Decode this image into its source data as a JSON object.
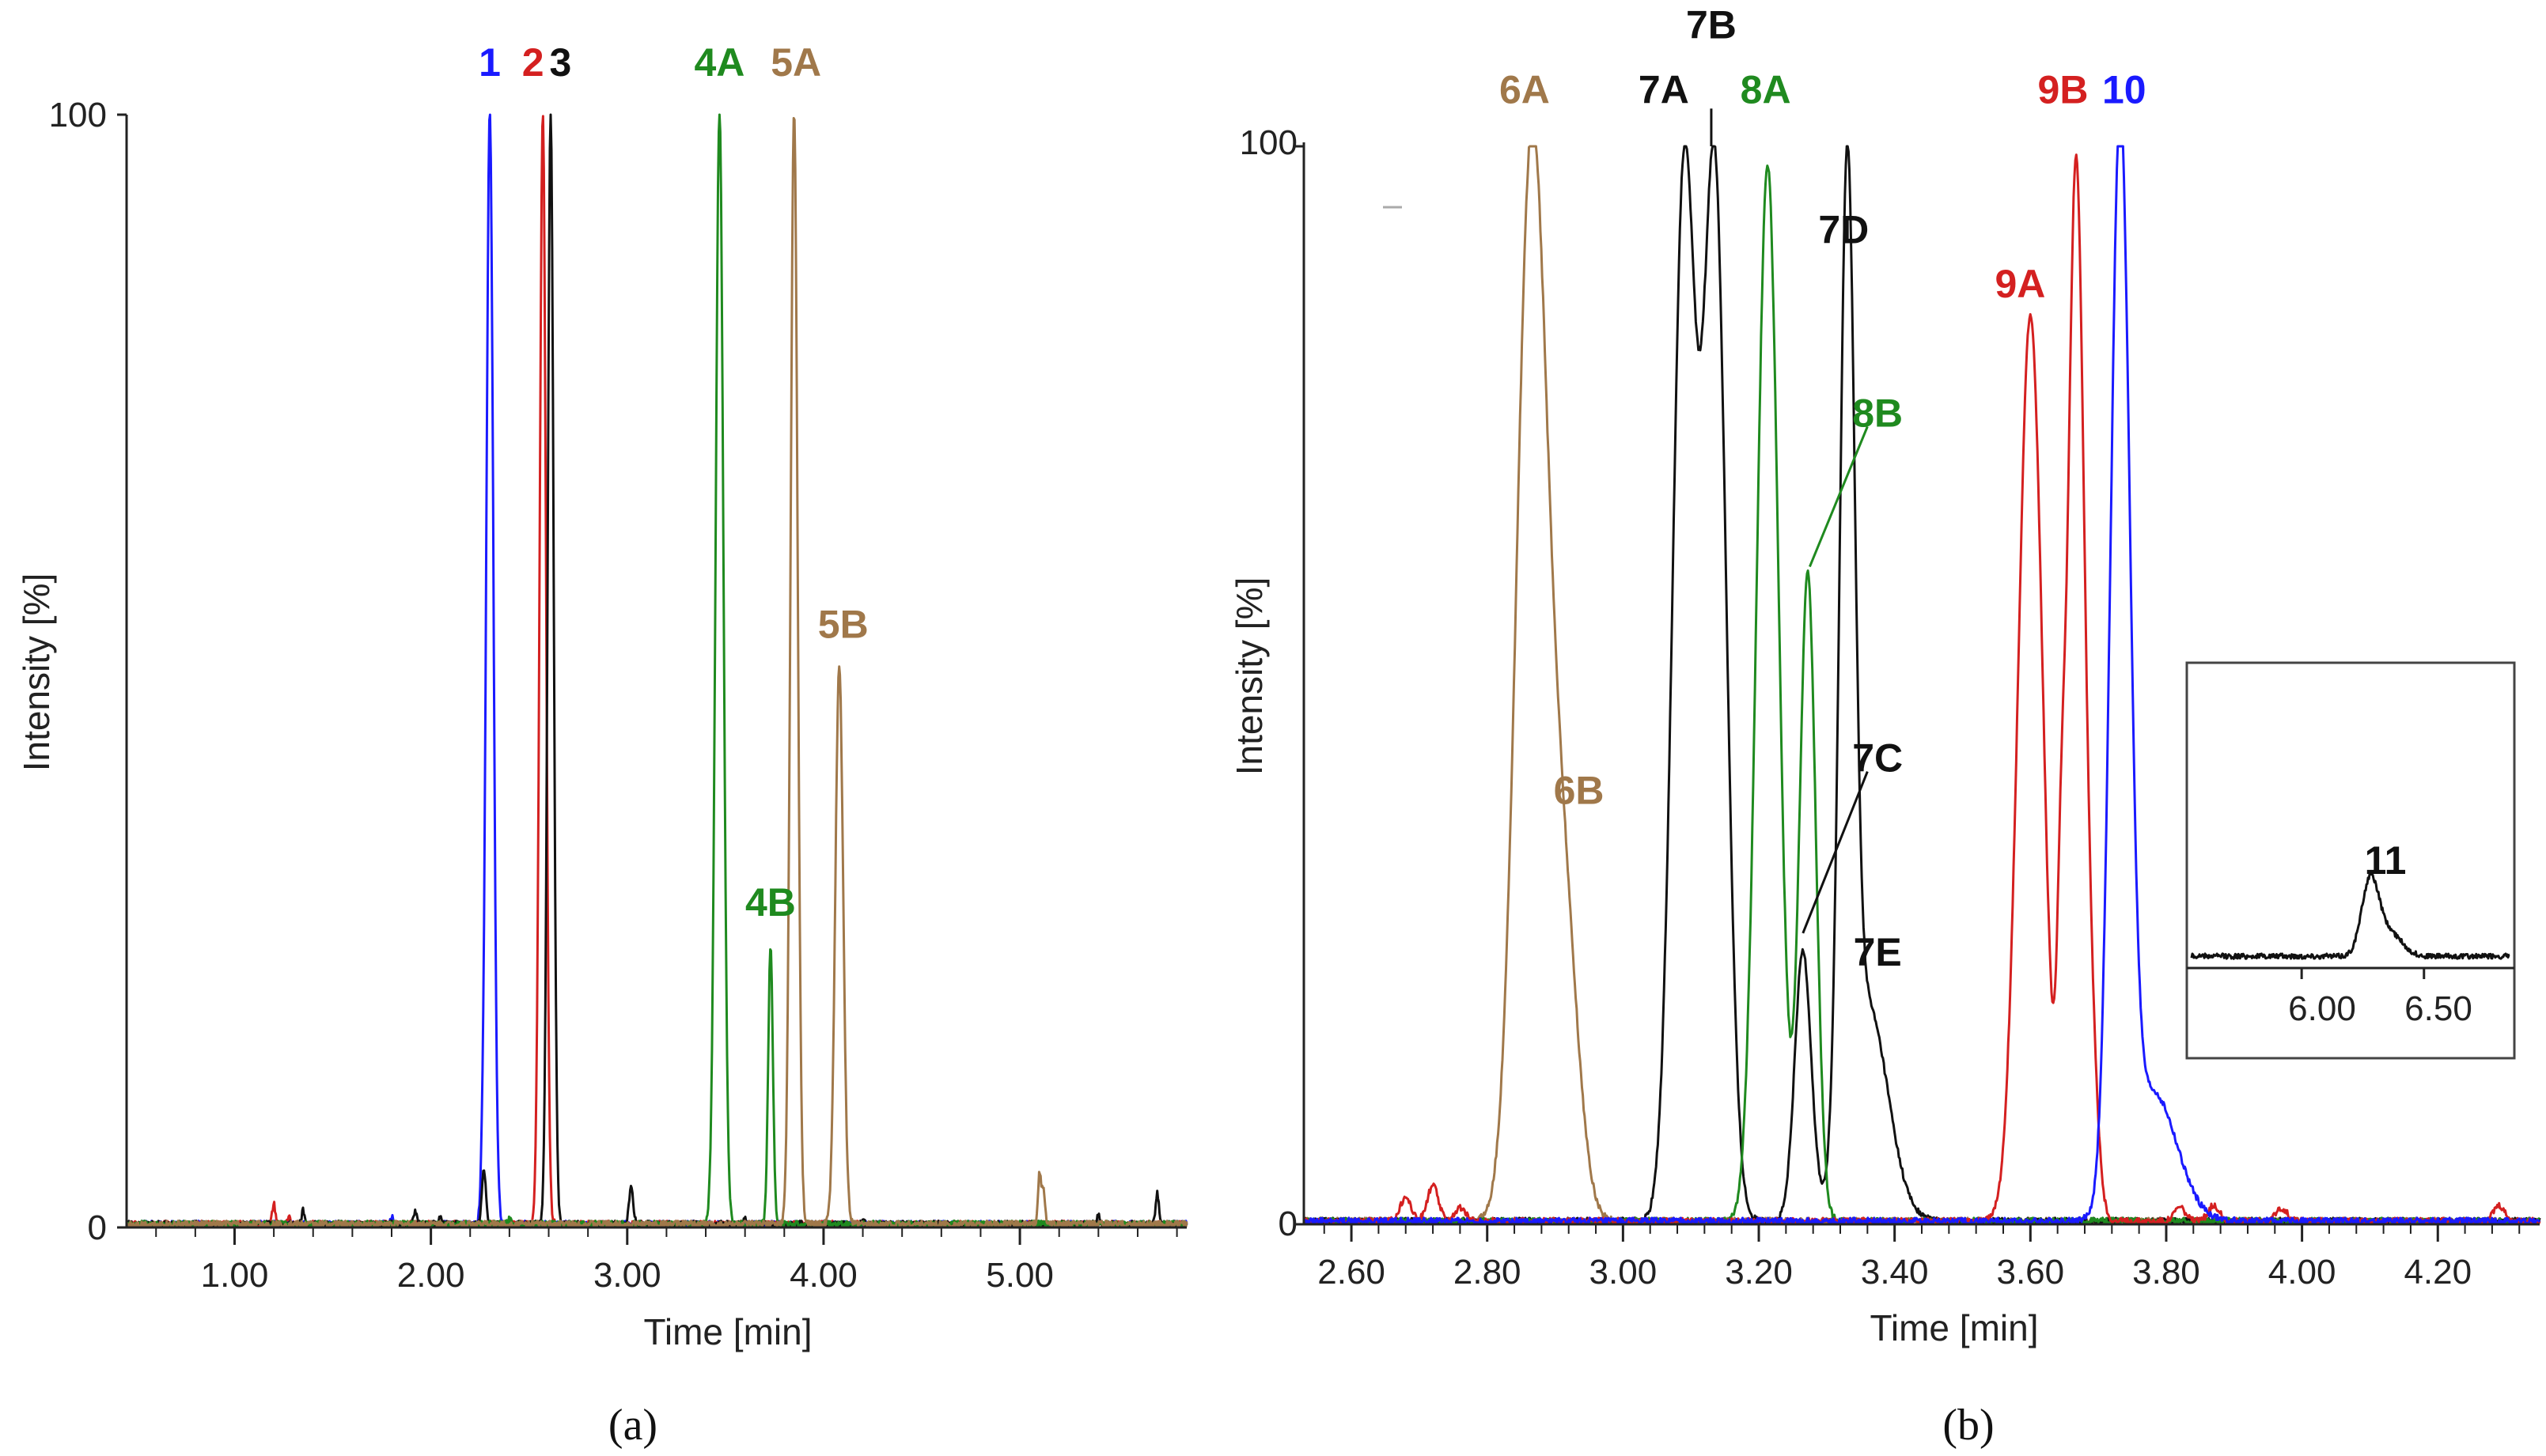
{
  "chart_data": [
    {
      "panel": "a",
      "type": "line",
      "panel_label": "(a)",
      "xlabel": "Time [min]",
      "ylabel": "Intensity [%]",
      "xlim": [
        0.45,
        5.85
      ],
      "ylim": [
        0,
        100
      ],
      "xticks": [
        1.0,
        2.0,
        3.0,
        4.0,
        5.0
      ],
      "xtick_labels": [
        "1.00",
        "2.00",
        "3.00",
        "4.00",
        "5.00"
      ],
      "yticks": [
        0,
        100
      ],
      "ytick_labels": [
        "0",
        "100"
      ],
      "colors": {
        "blue": "#1a1aff",
        "red": "#d42020",
        "black": "#111111",
        "green": "#1f8a1f",
        "brown": "#a0784a"
      },
      "series": [
        {
          "name": "1",
          "color": "blue",
          "peaks": [
            {
              "t": 2.3,
              "h": 100,
              "w": 0.018
            }
          ],
          "noise": [
            [
              1.8,
              0.6
            ],
            [
              2.26,
              2.0
            ]
          ]
        },
        {
          "name": "2",
          "color": "red",
          "peaks": [
            {
              "t": 2.57,
              "h": 100,
              "w": 0.016
            }
          ],
          "noise": [
            [
              1.2,
              1.8
            ],
            [
              1.28,
              0.5
            ]
          ]
        },
        {
          "name": "3",
          "color": "black",
          "peaks": [
            {
              "t": 2.61,
              "h": 100,
              "w": 0.015
            },
            {
              "t": 2.27,
              "h": 5,
              "w": 0.01
            },
            {
              "t": 3.02,
              "h": 3.5,
              "w": 0.01
            }
          ],
          "noise": [
            [
              1.35,
              1.2
            ],
            [
              1.92,
              1.0
            ],
            [
              2.05,
              0.6
            ],
            [
              3.6,
              0.5
            ],
            [
              4.2,
              0.5
            ],
            [
              5.4,
              0.8
            ],
            [
              5.7,
              2.8
            ]
          ]
        },
        {
          "name": "4",
          "color": "green",
          "peaks": [
            {
              "t": 3.47,
              "h": 100,
              "w": 0.02
            },
            {
              "t": 3.73,
              "h": 25,
              "w": 0.012
            }
          ],
          "noise": [
            [
              2.4,
              0.4
            ]
          ]
        },
        {
          "name": "5",
          "color": "brown",
          "peaks": [
            {
              "t": 3.85,
              "h": 100,
              "w": 0.018
            },
            {
              "t": 4.08,
              "h": 50,
              "w": 0.02
            }
          ],
          "noise": [
            [
              5.1,
              4.5
            ],
            [
              5.12,
              3.0
            ]
          ]
        }
      ],
      "annotations": [
        {
          "text": "1",
          "t": 2.3,
          "color": "blue"
        },
        {
          "text": "2",
          "t": 2.52,
          "color": "red"
        },
        {
          "text": "3",
          "t": 2.66,
          "color": "black"
        },
        {
          "text": "4A",
          "t": 3.47,
          "color": "green"
        },
        {
          "text": "5A",
          "t": 3.86,
          "color": "brown"
        },
        {
          "text": "4B",
          "t": 3.73,
          "color": "green",
          "y": 28
        },
        {
          "text": "5B",
          "t": 4.1,
          "color": "brown",
          "y": 53
        }
      ]
    },
    {
      "panel": "b",
      "type": "line",
      "panel_label": "(b)",
      "xlabel": "Time [min]",
      "ylabel": "Intensity [%]",
      "xlim": [
        2.53,
        4.35
      ],
      "ylim": [
        0,
        100
      ],
      "xticks": [
        2.6,
        2.8,
        3.0,
        3.2,
        3.4,
        3.6,
        3.8,
        4.0,
        4.2
      ],
      "xtick_labels": [
        "2.60",
        "2.80",
        "3.00",
        "3.20",
        "3.40",
        "3.60",
        "3.80",
        "4.00",
        "4.20"
      ],
      "yticks": [
        0,
        100
      ],
      "ytick_labels": [
        "0",
        "100"
      ],
      "colors": {
        "blue": "#1a1aff",
        "red": "#d42020",
        "black": "#111111",
        "green": "#1f8a1f",
        "brown": "#a0784a"
      },
      "series": [
        {
          "name": "6",
          "color": "brown",
          "peaks": [
            {
              "t": 2.865,
              "h": 98,
              "w": 0.022
            },
            {
              "t": 2.91,
              "h": 30,
              "w": 0.022
            }
          ]
        },
        {
          "name": "7",
          "color": "black",
          "peaks": [
            {
              "t": 3.09,
              "h": 97,
              "w": 0.017
            },
            {
              "t": 3.135,
              "h": 97,
              "w": 0.017
            },
            {
              "t": 3.265,
              "h": 25,
              "w": 0.012
            },
            {
              "t": 3.33,
              "h": 88,
              "w": 0.011
            },
            {
              "t": 3.36,
              "h": 20,
              "w": 0.03
            }
          ]
        },
        {
          "name": "8",
          "color": "green",
          "peaks": [
            {
              "t": 3.213,
              "h": 98,
              "w": 0.016
            },
            {
              "t": 3.272,
              "h": 60,
              "w": 0.012
            }
          ]
        },
        {
          "name": "9",
          "color": "red",
          "peaks": [
            {
              "t": 3.6,
              "h": 84,
              "w": 0.018
            },
            {
              "t": 3.667,
              "h": 98,
              "w": 0.012
            },
            {
              "t": 3.645,
              "h": 20,
              "w": 0.006
            },
            {
              "t": 3.69,
              "h": 12,
              "w": 0.01
            }
          ],
          "noise": [
            [
              2.68,
              2.2
            ],
            [
              2.72,
              3.3
            ],
            [
              2.76,
              1.2
            ],
            [
              3.82,
              1.3
            ],
            [
              3.87,
              1.5
            ],
            [
              3.97,
              1.2
            ],
            [
              4.29,
              1.4
            ]
          ]
        },
        {
          "name": "10",
          "color": "blue",
          "peaks": [
            {
              "t": 3.732,
              "h": 99,
              "w": 0.014
            },
            {
              "t": 3.78,
              "h": 12,
              "w": 0.035
            }
          ]
        }
      ],
      "annotations": [
        {
          "text": "6A",
          "t": 2.855,
          "color": "brown",
          "y": 104
        },
        {
          "text": "6B",
          "t": 2.935,
          "color": "brown",
          "y": 39
        },
        {
          "text": "7A",
          "t": 3.06,
          "color": "black",
          "y": 104
        },
        {
          "text": "7B",
          "t": 3.13,
          "color": "black",
          "y": 110
        },
        {
          "text": "8A",
          "t": 3.21,
          "color": "green",
          "y": 104
        },
        {
          "text": "7D",
          "t": 3.325,
          "color": "black",
          "y": 91
        },
        {
          "text": "8B",
          "t": 3.375,
          "color": "green",
          "y": 74
        },
        {
          "text": "7C",
          "t": 3.375,
          "color": "black",
          "y": 42
        },
        {
          "text": "7E",
          "t": 3.375,
          "color": "black",
          "y": 24
        },
        {
          "text": "9A",
          "t": 3.585,
          "color": "red",
          "y": 86
        },
        {
          "text": "9B",
          "t": 3.648,
          "color": "red",
          "y": 104
        },
        {
          "text": "10",
          "t": 3.738,
          "color": "blue",
          "y": 104
        }
      ],
      "inset": {
        "label": "11",
        "xtick_labels": [
          "6.00",
          "6.50"
        ],
        "xticks": [
          6.0,
          6.5
        ],
        "xlim": [
          5.55,
          6.85
        ],
        "peak": {
          "t": 6.28,
          "h": 58,
          "w": 0.035
        }
      }
    }
  ]
}
